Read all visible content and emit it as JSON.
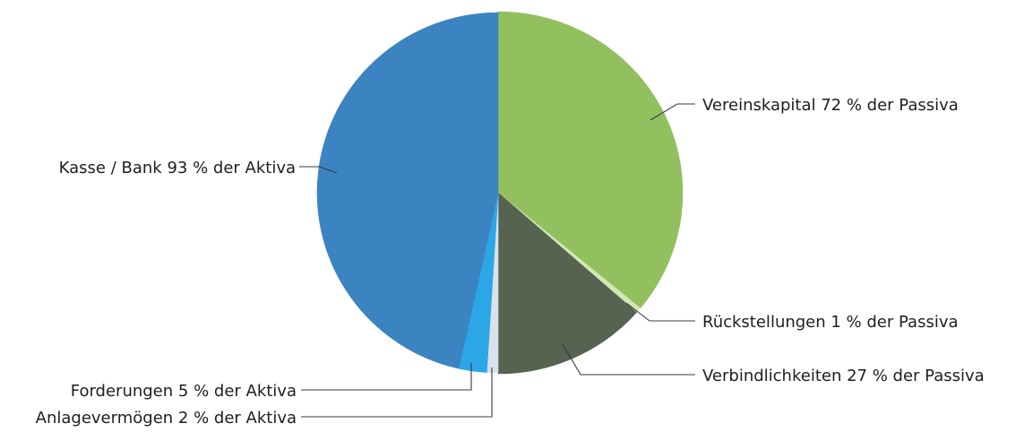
{
  "chart_data": {
    "type": "pie",
    "title": "",
    "groups": [
      {
        "name": "Passiva",
        "slices": [
          {
            "label": "Vereinskapital 72 % der Passiva",
            "value": 72,
            "color": "#92c05e"
          },
          {
            "label": "Rückstellungen 1 % der Passiva",
            "value": 1,
            "color": "#d2e8b4"
          },
          {
            "label": "Verbindlichkeiten 27 % der Passiva",
            "value": 27,
            "color": "#556350"
          }
        ]
      },
      {
        "name": "Aktiva",
        "slices": [
          {
            "label": "Anlagevermögen 2 % der Aktiva",
            "value": 2,
            "color": "#d9e1ea"
          },
          {
            "label": "Forderungen 5 % der Aktiva",
            "value": 5,
            "color": "#2ba6e6"
          },
          {
            "label": "Kasse / Bank 93 % der Aktiva",
            "value": 93,
            "color": "#3b84c1"
          }
        ]
      }
    ]
  }
}
